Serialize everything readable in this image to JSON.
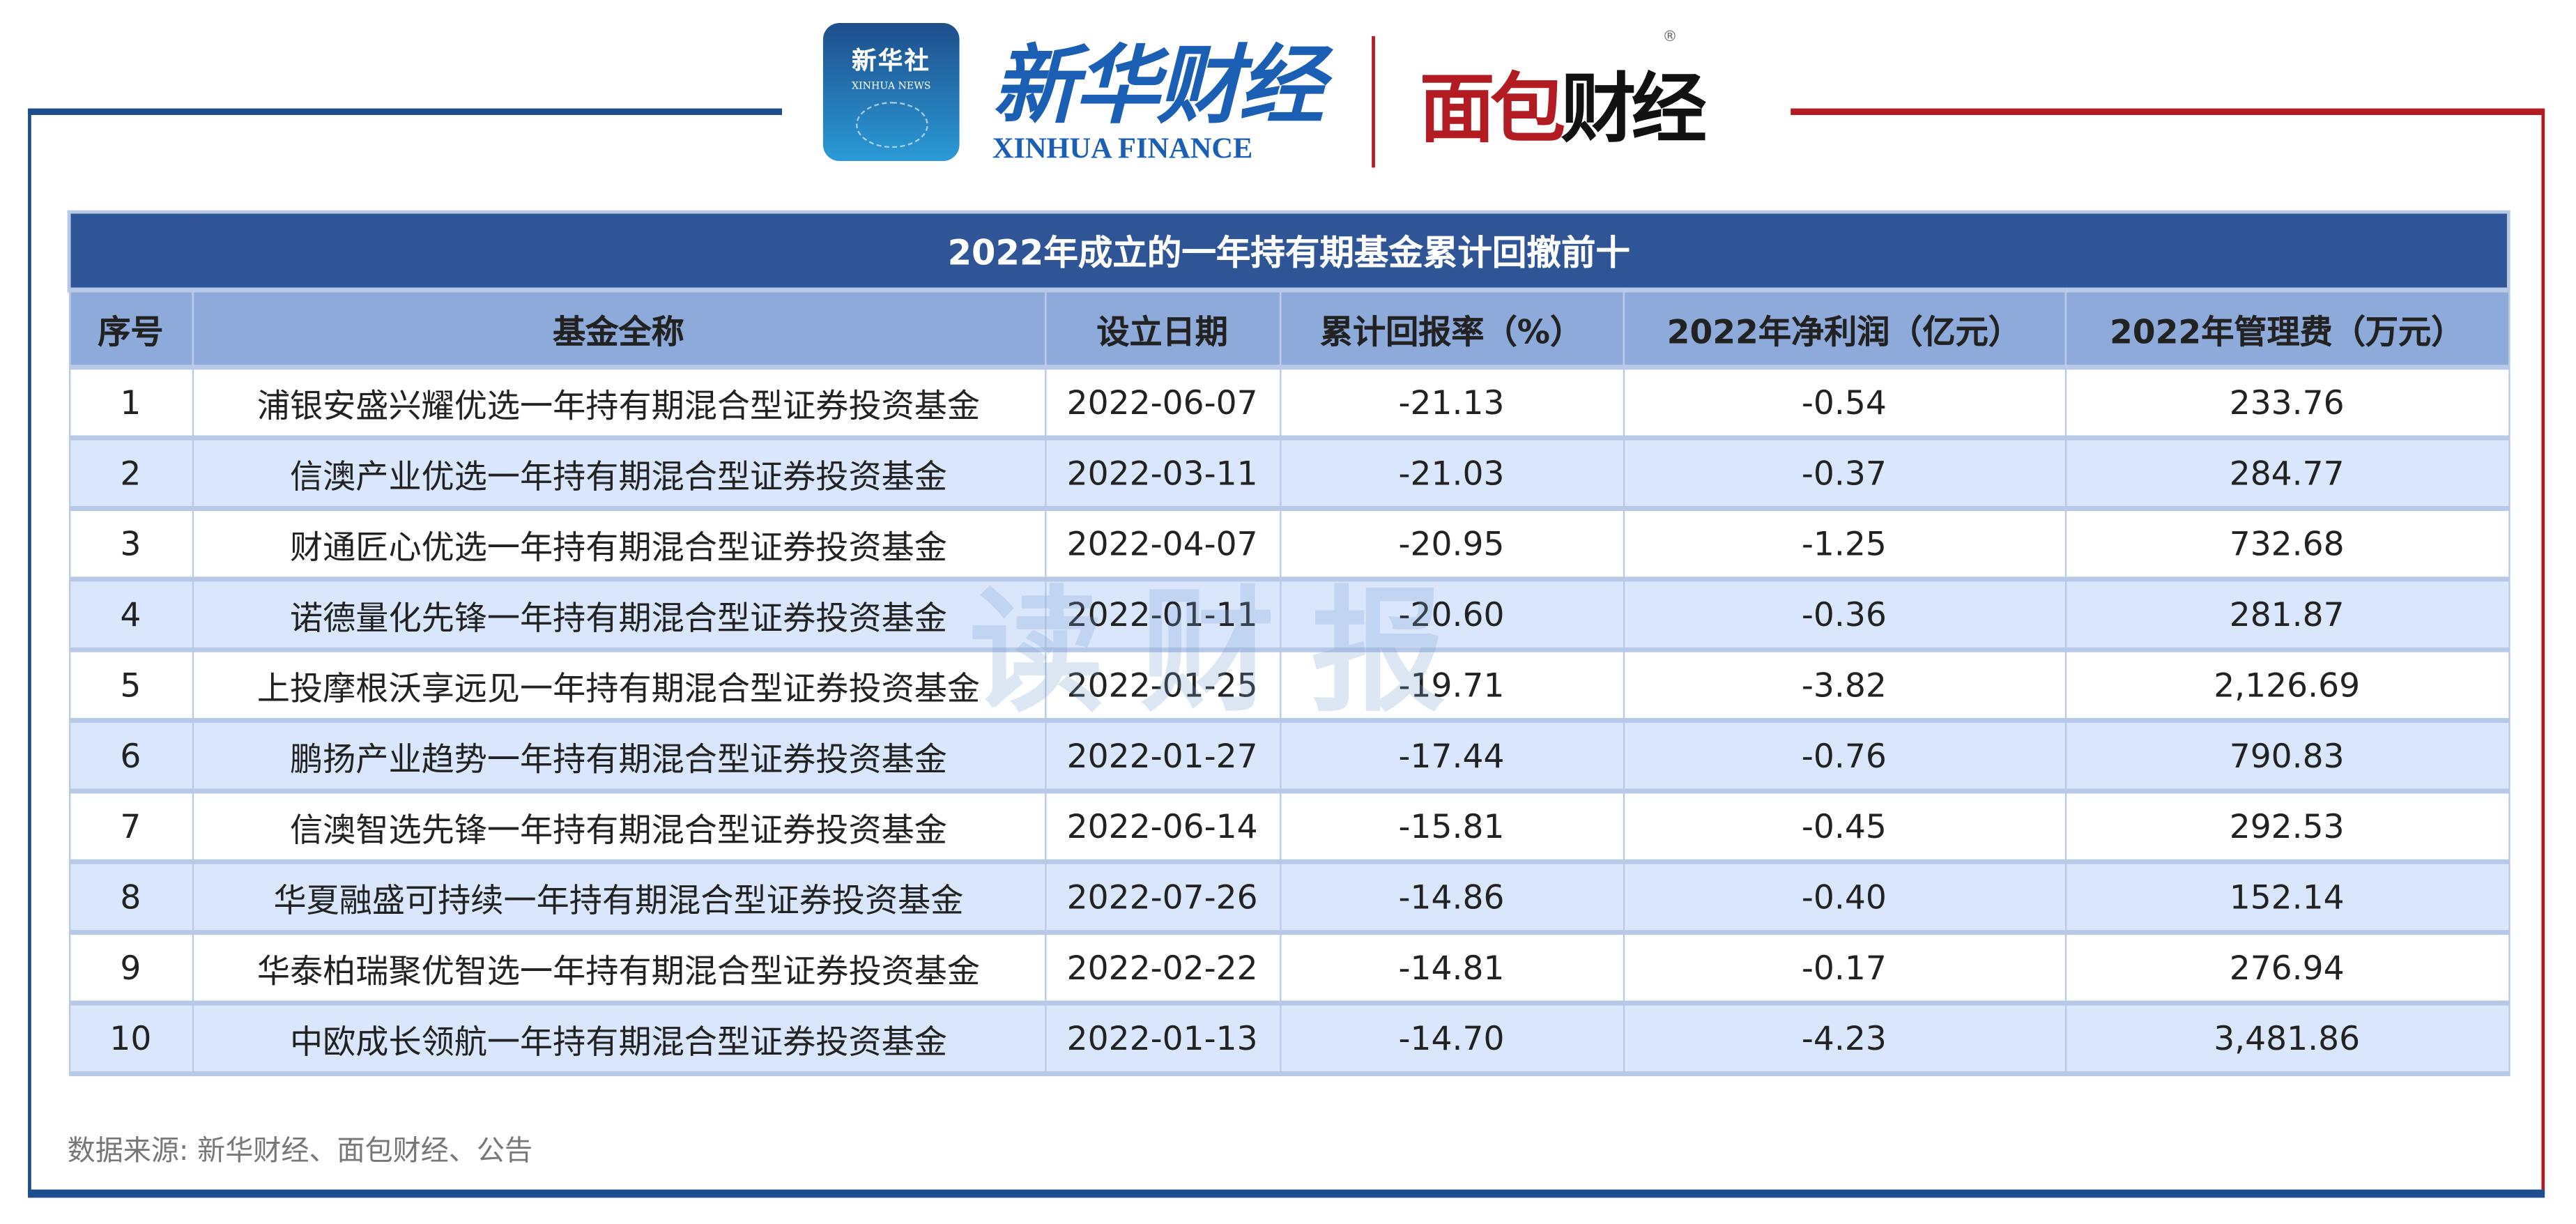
{
  "logos": {
    "xinhua_news_cn": "新华社",
    "xinhua_news_en": "XINHUA NEWS",
    "xinhua_finance_cn": "新华财经",
    "xinhua_finance_en": "XINHUA FINANCE",
    "mianbao_red": "面包",
    "mianbao_black": "财经",
    "registered_mark": "®"
  },
  "watermark": "读财报",
  "colors": {
    "brand_blue": "#1f4e8c",
    "brand_red": "#b31b22",
    "title_bg": "#2f5597",
    "header_bg": "#8eaadb",
    "stripe": "#dae6fb"
  },
  "table": {
    "title": "2022年成立的一年持有期基金累计回撤前十",
    "headers": [
      "序号",
      "基金全称",
      "设立日期",
      "累计回报率（%）",
      "2022年净利润（亿元）",
      "2022年管理费（万元）"
    ],
    "rows": [
      [
        "1",
        "浦银安盛兴耀优选一年持有期混合型证券投资基金",
        "2022-06-07",
        "-21.13",
        "-0.54",
        "233.76"
      ],
      [
        "2",
        "信澳产业优选一年持有期混合型证券投资基金",
        "2022-03-11",
        "-21.03",
        "-0.37",
        "284.77"
      ],
      [
        "3",
        "财通匠心优选一年持有期混合型证券投资基金",
        "2022-04-07",
        "-20.95",
        "-1.25",
        "732.68"
      ],
      [
        "4",
        "诺德量化先锋一年持有期混合型证券投资基金",
        "2022-01-11",
        "-20.60",
        "-0.36",
        "281.87"
      ],
      [
        "5",
        "上投摩根沃享远见一年持有期混合型证券投资基金",
        "2022-01-25",
        "-19.71",
        "-3.82",
        "2,126.69"
      ],
      [
        "6",
        "鹏扬产业趋势一年持有期混合型证券投资基金",
        "2022-01-27",
        "-17.44",
        "-0.76",
        "790.83"
      ],
      [
        "7",
        "信澳智选先锋一年持有期混合型证券投资基金",
        "2022-06-14",
        "-15.81",
        "-0.45",
        "292.53"
      ],
      [
        "8",
        "华夏融盛可持续一年持有期混合型证券投资基金",
        "2022-07-26",
        "-14.86",
        "-0.40",
        "152.14"
      ],
      [
        "9",
        "华泰柏瑞聚优智选一年持有期混合型证券投资基金",
        "2022-02-22",
        "-14.81",
        "-0.17",
        "276.94"
      ],
      [
        "10",
        "中欧成长领航一年持有期混合型证券投资基金",
        "2022-01-13",
        "-14.70",
        "-4.23",
        "3,481.86"
      ]
    ]
  },
  "source": "数据来源: 新华财经、面包财经、公告"
}
